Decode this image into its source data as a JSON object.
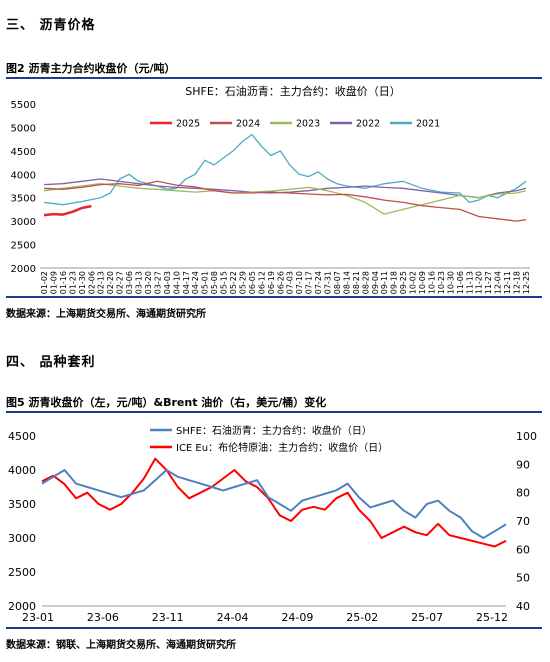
{
  "section3": {
    "title": "三、    沥青价格"
  },
  "fig2": {
    "caption": "图2    沥青主力合约收盘价（元/吨）",
    "source": "数据来源：上海期货交易所、海通期货研究所"
  },
  "section4": {
    "title": "四、    品种套利"
  },
  "fig5": {
    "caption": "图5    沥青收盘价（左，元/吨）&Brent 油价（右，美元/桶）变化",
    "source": "数据来源：钢联、上海期货交易所、海通期货研究所"
  },
  "chart_data": [
    {
      "type": "line",
      "title": "SHFE：石油沥青：主力合约：收盘价（日）",
      "x_ticks": [
        "01-02",
        "01-09",
        "01-16",
        "01-23",
        "01-30",
        "02-06",
        "02-13",
        "02-20",
        "02-27",
        "03-06",
        "03-13",
        "03-20",
        "03-27",
        "04-03",
        "04-10",
        "04-17",
        "04-24",
        "05-01",
        "05-08",
        "05-15",
        "05-22",
        "05-29",
        "06-05",
        "06-12",
        "06-19",
        "06-26",
        "07-03",
        "07-10",
        "07-17",
        "07-24",
        "07-31",
        "08-07",
        "08-14",
        "08-21",
        "08-28",
        "09-04",
        "09-11",
        "09-18",
        "09-25",
        "10-02",
        "10-09",
        "10-16",
        "10-23",
        "10-30",
        "11-06",
        "11-13",
        "11-20",
        "11-27",
        "12-04",
        "12-11",
        "12-18",
        "12-25"
      ],
      "ylim": [
        2000,
        5500
      ],
      "y_ticks": [
        2000,
        2500,
        3000,
        3500,
        4000,
        4500,
        5000,
        5500
      ],
      "legend_position": "top",
      "series": [
        {
          "name": "2025",
          "color": "#e8262a",
          "points": [
            [
              0,
              3130
            ],
            [
              1,
              3150
            ],
            [
              2,
              3140
            ],
            [
              3,
              3200
            ],
            [
              4,
              3280
            ],
            [
              5,
              3320
            ]
          ]
        },
        {
          "name": "2024",
          "color": "#c0504d",
          "points": [
            [
              0,
              3700
            ],
            [
              2,
              3680
            ],
            [
              4,
              3720
            ],
            [
              6,
              3780
            ],
            [
              8,
              3800
            ],
            [
              10,
              3760
            ],
            [
              12,
              3850
            ],
            [
              14,
              3770
            ],
            [
              16,
              3730
            ],
            [
              18,
              3650
            ],
            [
              20,
              3600
            ],
            [
              22,
              3600
            ],
            [
              24,
              3620
            ],
            [
              26,
              3600
            ],
            [
              28,
              3580
            ],
            [
              30,
              3560
            ],
            [
              32,
              3570
            ],
            [
              34,
              3520
            ],
            [
              36,
              3450
            ],
            [
              38,
              3400
            ],
            [
              40,
              3330
            ],
            [
              42,
              3290
            ],
            [
              44,
              3250
            ],
            [
              46,
              3100
            ],
            [
              48,
              3050
            ],
            [
              50,
              3000
            ],
            [
              51,
              3030
            ]
          ]
        },
        {
          "name": "2023",
          "color": "#9bbb59",
          "points": [
            [
              0,
              3650
            ],
            [
              2,
              3700
            ],
            [
              4,
              3750
            ],
            [
              6,
              3800
            ],
            [
              8,
              3750
            ],
            [
              10,
              3700
            ],
            [
              12,
              3680
            ],
            [
              14,
              3650
            ],
            [
              16,
              3620
            ],
            [
              18,
              3650
            ],
            [
              20,
              3600
            ],
            [
              22,
              3620
            ],
            [
              24,
              3640
            ],
            [
              26,
              3680
            ],
            [
              28,
              3720
            ],
            [
              30,
              3650
            ],
            [
              32,
              3550
            ],
            [
              34,
              3400
            ],
            [
              36,
              3150
            ],
            [
              38,
              3250
            ],
            [
              40,
              3350
            ],
            [
              42,
              3450
            ],
            [
              44,
              3550
            ],
            [
              46,
              3500
            ],
            [
              48,
              3580
            ],
            [
              50,
              3600
            ],
            [
              51,
              3650
            ]
          ]
        },
        {
          "name": "2022",
          "color": "#8064a2",
          "points": [
            [
              0,
              3780
            ],
            [
              2,
              3800
            ],
            [
              4,
              3850
            ],
            [
              6,
              3900
            ],
            [
              8,
              3850
            ],
            [
              10,
              3800
            ],
            [
              12,
              3750
            ],
            [
              14,
              3720
            ],
            [
              16,
              3700
            ],
            [
              18,
              3680
            ],
            [
              20,
              3650
            ],
            [
              22,
              3620
            ],
            [
              24,
              3600
            ],
            [
              26,
              3620
            ],
            [
              28,
              3650
            ],
            [
              30,
              3700
            ],
            [
              32,
              3720
            ],
            [
              34,
              3750
            ],
            [
              36,
              3720
            ],
            [
              38,
              3700
            ],
            [
              40,
              3650
            ],
            [
              42,
              3600
            ],
            [
              44,
              3550
            ],
            [
              46,
              3500
            ],
            [
              48,
              3600
            ],
            [
              50,
              3650
            ],
            [
              51,
              3700
            ]
          ]
        },
        {
          "name": "2021",
          "color": "#4bacc6",
          "points": [
            [
              0,
              3400
            ],
            [
              2,
              3350
            ],
            [
              4,
              3420
            ],
            [
              6,
              3500
            ],
            [
              7,
              3600
            ],
            [
              8,
              3900
            ],
            [
              9,
              4000
            ],
            [
              10,
              3850
            ],
            [
              11,
              3800
            ],
            [
              12,
              3750
            ],
            [
              13,
              3680
            ],
            [
              14,
              3700
            ],
            [
              15,
              3900
            ],
            [
              16,
              4000
            ],
            [
              17,
              4300
            ],
            [
              18,
              4200
            ],
            [
              19,
              4350
            ],
            [
              20,
              4500
            ],
            [
              21,
              4700
            ],
            [
              22,
              4850
            ],
            [
              23,
              4600
            ],
            [
              24,
              4400
            ],
            [
              25,
              4500
            ],
            [
              26,
              4200
            ],
            [
              27,
              4000
            ],
            [
              28,
              3950
            ],
            [
              29,
              4050
            ],
            [
              30,
              3900
            ],
            [
              31,
              3800
            ],
            [
              32,
              3750
            ],
            [
              34,
              3700
            ],
            [
              36,
              3800
            ],
            [
              38,
              3850
            ],
            [
              40,
              3700
            ],
            [
              42,
              3620
            ],
            [
              44,
              3600
            ],
            [
              45,
              3400
            ],
            [
              46,
              3450
            ],
            [
              47,
              3550
            ],
            [
              48,
              3500
            ],
            [
              49,
              3600
            ],
            [
              50,
              3700
            ],
            [
              51,
              3850
            ]
          ]
        }
      ]
    },
    {
      "type": "line",
      "x_ticks": [
        "23-01",
        "23-06",
        "23-11",
        "24-04",
        "24-09",
        "25-02",
        "25-07",
        "25-12"
      ],
      "y_left_ticks": [
        2000,
        2500,
        3000,
        3500,
        4000,
        4500
      ],
      "y_left_lim": [
        2000,
        4500
      ],
      "y_right_ticks": [
        40,
        50,
        60,
        70,
        80,
        90,
        100
      ],
      "y_right_lim": [
        40,
        100
      ],
      "legend_position": "top-center",
      "series": [
        {
          "name": "SHFE：石油沥青：主力合约：收盘价（日）",
          "axis": "left",
          "color": "#4f81bd",
          "points": [
            [
              0,
              3800
            ],
            [
              1,
              3900
            ],
            [
              2,
              4000
            ],
            [
              3,
              3800
            ],
            [
              4,
              3750
            ],
            [
              5,
              3700
            ],
            [
              6,
              3650
            ],
            [
              7,
              3600
            ],
            [
              8,
              3650
            ],
            [
              9,
              3700
            ],
            [
              10,
              3850
            ],
            [
              11,
              4000
            ],
            [
              12,
              3900
            ],
            [
              13,
              3850
            ],
            [
              14,
              3800
            ],
            [
              15,
              3750
            ],
            [
              16,
              3700
            ],
            [
              17,
              3750
            ],
            [
              18,
              3800
            ],
            [
              19,
              3850
            ],
            [
              20,
              3600
            ],
            [
              21,
              3500
            ],
            [
              22,
              3400
            ],
            [
              23,
              3550
            ],
            [
              24,
              3600
            ],
            [
              25,
              3650
            ],
            [
              26,
              3700
            ],
            [
              27,
              3800
            ],
            [
              28,
              3600
            ],
            [
              29,
              3450
            ],
            [
              30,
              3500
            ],
            [
              31,
              3550
            ],
            [
              32,
              3400
            ],
            [
              33,
              3300
            ],
            [
              34,
              3500
            ],
            [
              35,
              3550
            ],
            [
              36,
              3400
            ],
            [
              37,
              3300
            ],
            [
              38,
              3100
            ],
            [
              39,
              3000
            ],
            [
              40,
              3100
            ],
            [
              41,
              3200
            ]
          ]
        },
        {
          "name": "ICE Eu：布伦特原油：主力合约：收盘价（日）",
          "axis": "right",
          "color": "#ff0000",
          "points": [
            [
              0,
              84
            ],
            [
              1,
              86
            ],
            [
              2,
              83
            ],
            [
              3,
              78
            ],
            [
              4,
              80
            ],
            [
              5,
              76
            ],
            [
              6,
              74
            ],
            [
              7,
              76
            ],
            [
              8,
              80
            ],
            [
              9,
              85
            ],
            [
              10,
              92
            ],
            [
              11,
              88
            ],
            [
              12,
              82
            ],
            [
              13,
              78
            ],
            [
              14,
              80
            ],
            [
              15,
              82
            ],
            [
              16,
              85
            ],
            [
              17,
              88
            ],
            [
              18,
              84
            ],
            [
              19,
              82
            ],
            [
              20,
              78
            ],
            [
              21,
              72
            ],
            [
              22,
              70
            ],
            [
              23,
              74
            ],
            [
              24,
              75
            ],
            [
              25,
              74
            ],
            [
              26,
              78
            ],
            [
              27,
              80
            ],
            [
              28,
              74
            ],
            [
              29,
              70
            ],
            [
              30,
              64
            ],
            [
              31,
              66
            ],
            [
              32,
              68
            ],
            [
              33,
              66
            ],
            [
              34,
              65
            ],
            [
              35,
              69
            ],
            [
              36,
              65
            ],
            [
              37,
              64
            ],
            [
              38,
              63
            ],
            [
              39,
              62
            ],
            [
              40,
              61
            ],
            [
              41,
              63
            ]
          ]
        }
      ]
    }
  ]
}
